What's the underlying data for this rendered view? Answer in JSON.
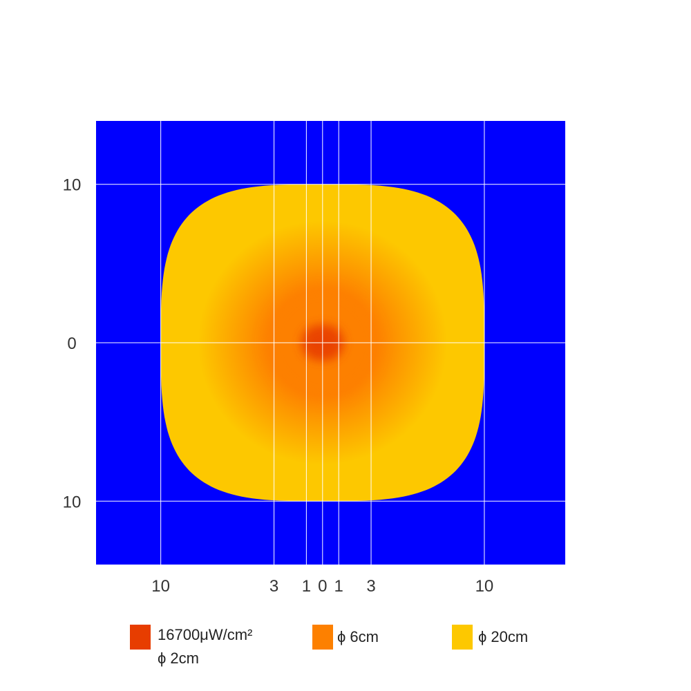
{
  "chart_data": {
    "type": "heatmap",
    "title": "",
    "colors": {
      "background": "#0000fe",
      "grid": "#ffffff",
      "outer": "#fdc800",
      "mid": "#fd8000",
      "inner": "#e73d00"
    },
    "x_ticks": [
      {
        "value": -10,
        "label": "10"
      },
      {
        "value": -3,
        "label": "3"
      },
      {
        "value": -1,
        "label": "1"
      },
      {
        "value": 0,
        "label": "0"
      },
      {
        "value": 1,
        "label": "1"
      },
      {
        "value": 3,
        "label": "3"
      },
      {
        "value": 10,
        "label": "10"
      }
    ],
    "y_ticks": [
      {
        "value": 10,
        "label": "10"
      },
      {
        "value": 0,
        "label": "0"
      },
      {
        "value": -10,
        "label": "10"
      }
    ],
    "xlim": [
      -14,
      15
    ],
    "ylim": [
      -14,
      14
    ],
    "grid": true,
    "zones": [
      {
        "name": "16700μW/cm²",
        "diameter_cm": 2,
        "color": "#e73d00"
      },
      {
        "name": "6cm",
        "diameter_cm": 6,
        "color": "#fd8000"
      },
      {
        "name": "20cm",
        "diameter_cm": 20,
        "color": "#fdc800"
      }
    ],
    "legend": [
      {
        "label": "16700μW/cm²",
        "sublabel": "ϕ  2cm",
        "color": "#e73d00"
      },
      {
        "label": "ϕ  6cm",
        "color": "#fd8000"
      },
      {
        "label": "ϕ 20cm",
        "color": "#fdc800"
      }
    ]
  }
}
